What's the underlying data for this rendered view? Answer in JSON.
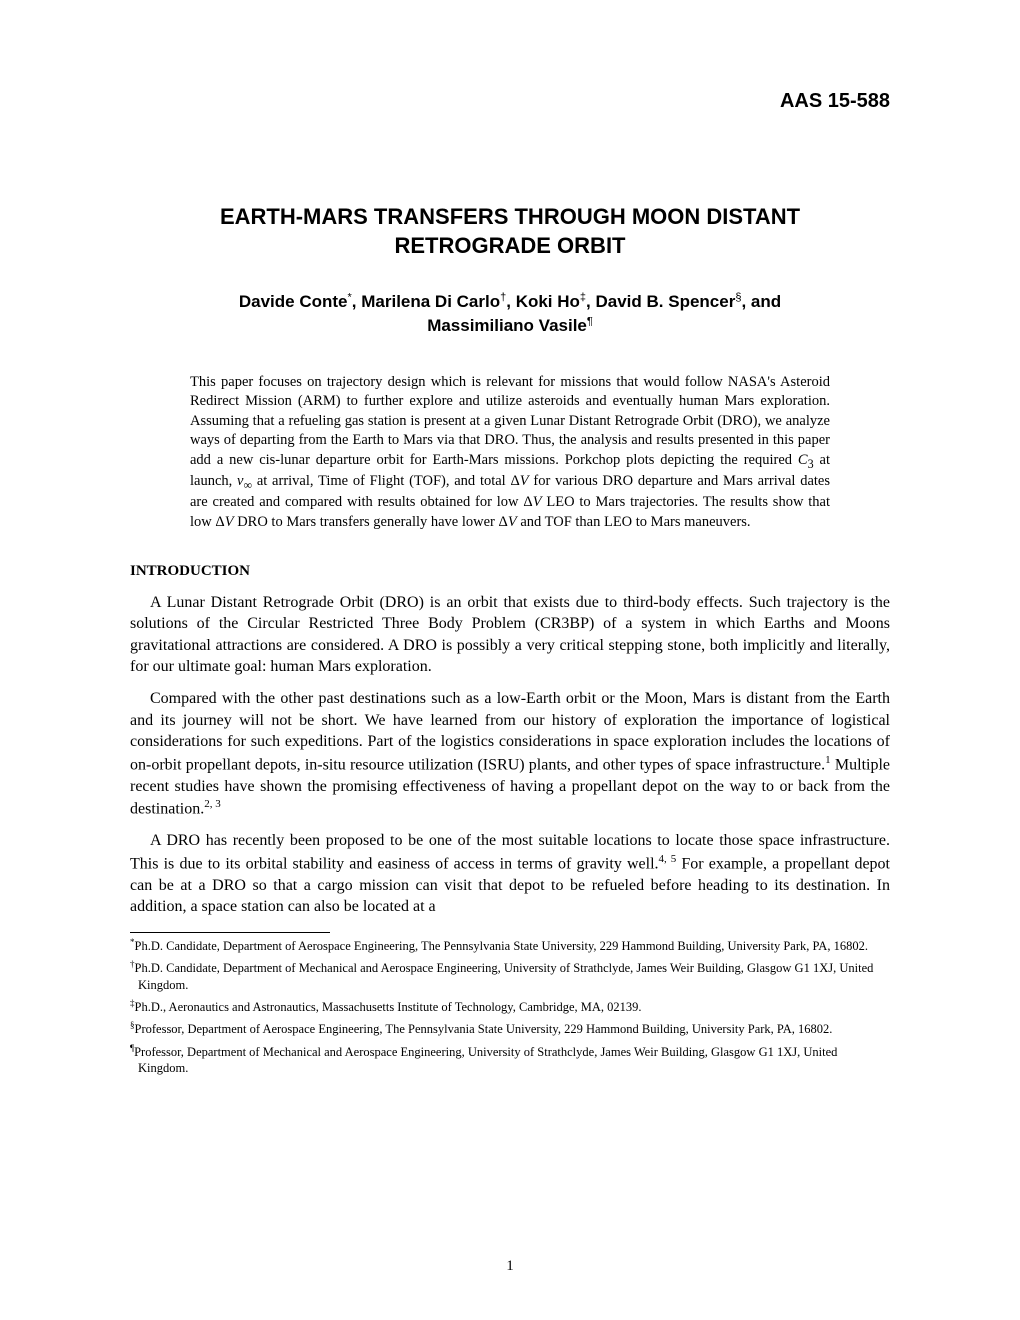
{
  "paper_number": "AAS 15-588",
  "title_line1": "EARTH-MARS TRANSFERS THROUGH MOON DISTANT",
  "title_line2": "RETROGRADE ORBIT",
  "authors": {
    "a1_name": "Davide Conte",
    "a1_mark": "*",
    "a2_name": "Marilena Di Carlo",
    "a2_mark": "†",
    "a3_name": "Koki Ho",
    "a3_mark": "‡",
    "a4_name": "David B. Spencer",
    "a4_mark": "§",
    "and": " and",
    "a5_name": "Massimiliano Vasile",
    "a5_mark": "¶"
  },
  "abstract": {
    "p1a": "This paper focuses on trajectory design which is relevant for missions that would follow NASA's Asteroid Redirect Mission (ARM) to further explore and utilize asteroids and eventually human Mars exploration. Assuming that a refueling gas station is present at a given Lunar Distant Retrograde Orbit (DRO), we analyze ways of departing from the Earth to Mars via that DRO. Thus, the analysis and results presented in this paper add a new cis-lunar departure orbit for Earth-Mars missions. Porkchop plots depicting the required ",
    "c3": "C",
    "c3sub": "3",
    "p1b": " at launch, ",
    "vinf": "v",
    "vinfsub": "∞",
    "p1c": " at arrival, Time of Flight (TOF), and total ",
    "dv1": "Δ",
    "dv1i": "V",
    "p1d": " for various DRO departure and Mars arrival dates are created and compared with results obtained for low ",
    "dv2": "Δ",
    "dv2i": "V",
    "p1e": " LEO to Mars trajectories. The results show that low ",
    "dv3": "Δ",
    "dv3i": "V",
    "p1f": " DRO to Mars transfers generally have lower ",
    "dv4": "Δ",
    "dv4i": "V",
    "p1g": " and TOF than LEO to Mars maneuvers."
  },
  "section_heading": "INTRODUCTION",
  "body": {
    "p1": "A Lunar Distant Retrograde Orbit (DRO) is an orbit that exists due to third-body effects. Such trajectory is the solutions of the Circular Restricted Three Body Problem (CR3BP) of a system in which Earths and Moons gravitational attractions are considered. A DRO is possibly a very critical stepping stone, both implicitly and literally, for our ultimate goal: human Mars exploration.",
    "p2a": "Compared with the other past destinations such as a low-Earth orbit or the Moon, Mars is distant from the Earth and its journey will not be short. We have learned from our history of exploration the importance of logistical considerations for such expeditions. Part of the logistics considerations in space exploration includes the locations of on-orbit propellant depots, in-situ resource utilization (ISRU) plants, and other types of space infrastructure.",
    "p2ref1": "1",
    "p2b": " Multiple recent studies have shown the promising effectiveness of having a propellant depot on the way to or back from the destination.",
    "p2ref2": "2, 3",
    "p3a": "A DRO has recently been proposed to be one of the most suitable locations to locate those space infrastructure. This is due to its orbital stability and easiness of access in terms of gravity well.",
    "p3ref1": "4, 5",
    "p3b": " For example, a propellant depot can be at a DRO so that a cargo mission can visit that depot to be refueled before heading to its destination. In addition, a space station can also be located at a"
  },
  "footnotes": {
    "f1_mark": "*",
    "f1_text": "Ph.D. Candidate, Department of Aerospace Engineering, The Pennsylvania State University, 229 Hammond Building, University Park, PA, 16802.",
    "f2_mark": "†",
    "f2_text": "Ph.D. Candidate, Department of Mechanical and Aerospace Engineering, University of Strathclyde, James Weir Building, Glasgow G1 1XJ, United Kingdom.",
    "f3_mark": "‡",
    "f3_text": "Ph.D., Aeronautics and Astronautics, Massachusetts Institute of Technology, Cambridge, MA, 02139.",
    "f4_mark": "§",
    "f4_text": "Professor, Department of Aerospace Engineering, The Pennsylvania State University, 229 Hammond Building, University Park, PA, 16802.",
    "f5_mark": "¶",
    "f5_text": "Professor, Department of Mechanical and Aerospace Engineering, University of Strathclyde, James Weir Building, Glasgow G1 1XJ, United Kingdom."
  },
  "page_number": "1"
}
